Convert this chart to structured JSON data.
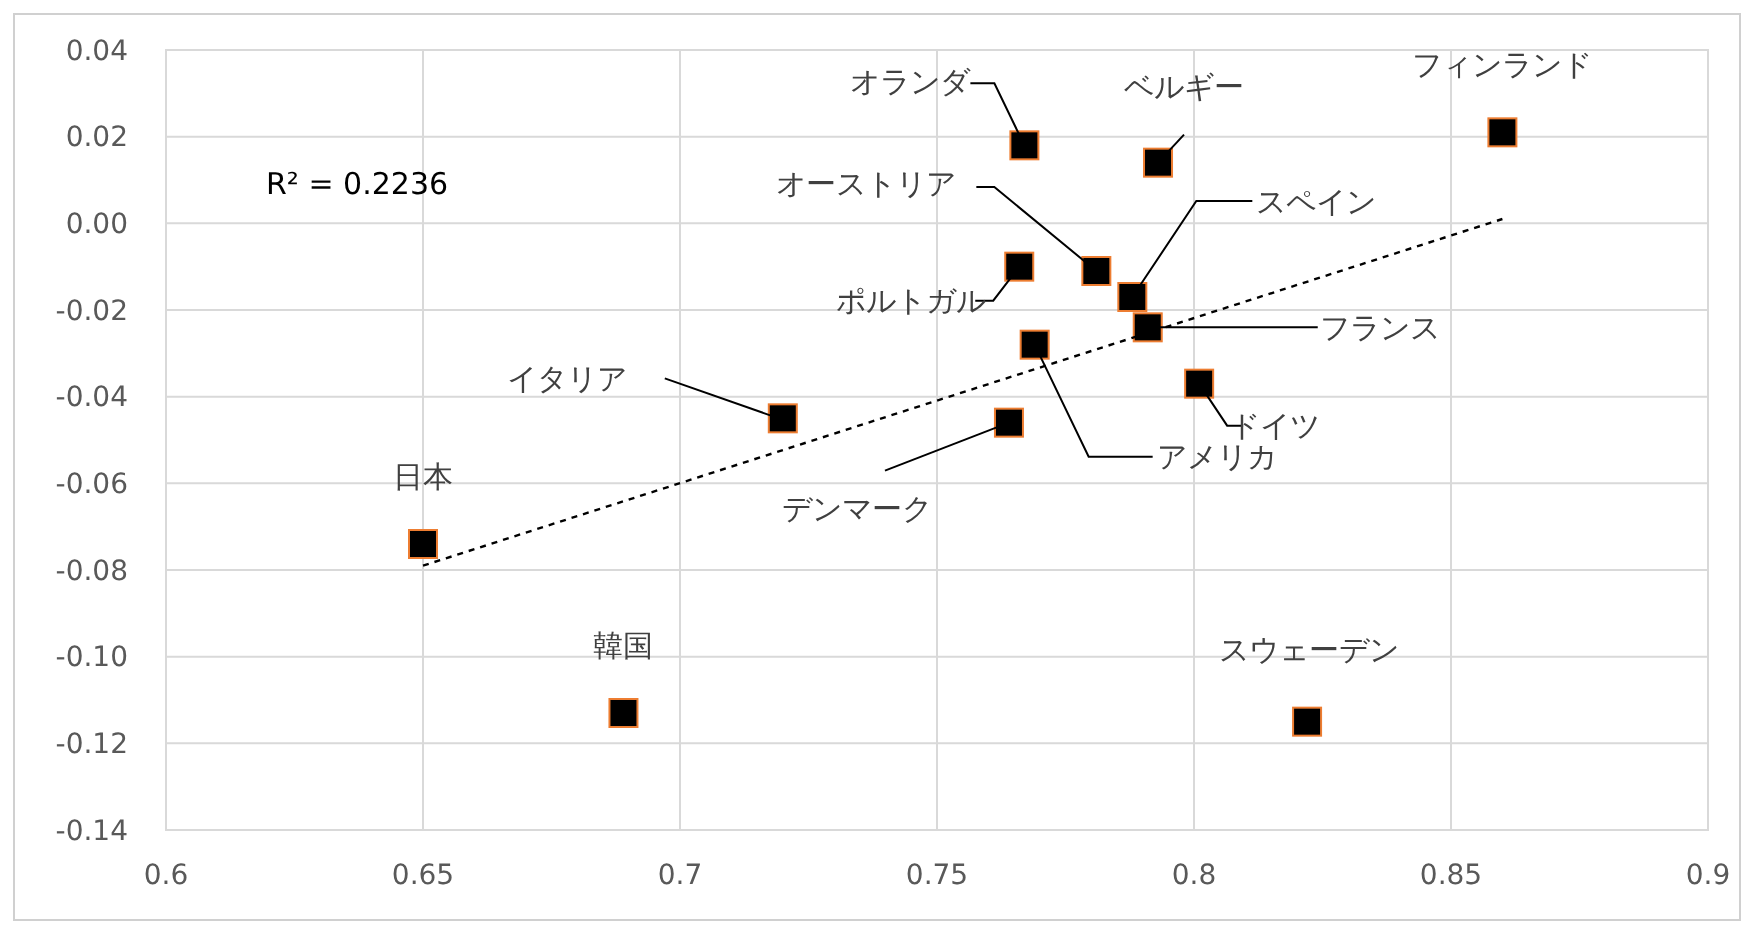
{
  "chart_data": {
    "type": "scatter",
    "grid": true,
    "xlim": [
      0.6,
      0.9
    ],
    "xticks": [
      0.6,
      0.65,
      0.7,
      0.75,
      0.8,
      0.85,
      0.9
    ],
    "ylim": [
      -0.14,
      0.04
    ],
    "yticks": [
      {
        "value": -0.14,
        "label": "-0.14"
      },
      {
        "value": -0.12,
        "label": "-0.12"
      },
      {
        "value": -0.1,
        "label": "-0.10"
      },
      {
        "value": -0.08,
        "label": "-0.08"
      },
      {
        "value": -0.06,
        "label": "-0.06"
      },
      {
        "value": -0.04,
        "label": "-0.04"
      },
      {
        "value": -0.02,
        "label": "-0.02"
      },
      {
        "value": 0,
        "label": "0.00"
      },
      {
        "value": 0.02,
        "label": "0.02"
      },
      {
        "value": 0.04,
        "label": "0.04"
      }
    ],
    "series": [
      {
        "marker": "square",
        "color": "#000000",
        "x": [
          0.65,
          0.689,
          0.72,
          0.767,
          0.793,
          0.86,
          0.781,
          0.766,
          0.788,
          0.791,
          0.769,
          0.764,
          0.801,
          0.822
        ],
        "values": [
          -0.074,
          -0.113,
          -0.045,
          0.018,
          0.014,
          0.021,
          -0.011,
          -0.01,
          -0.017,
          -0.024,
          -0.028,
          -0.046,
          -0.037,
          -0.115
        ]
      },
      {
        "type": "line",
        "marker": "none",
        "color": "#000000",
        "line_style": "dashed",
        "x": [
          0.65,
          0.86
        ],
        "values": [
          -0.079,
          0.001
        ]
      }
    ],
    "annotations": [
      "R² = 0.2236",
      {
        "text": "日本",
        "x": 0.65,
        "y": -0.074
      },
      {
        "text": "韓国",
        "x": 0.689,
        "y": -0.113
      },
      {
        "text": "イタリア",
        "x": 0.72,
        "y": -0.045
      },
      {
        "text": "オランダ",
        "x": 0.767,
        "y": 0.018
      },
      {
        "text": "ベルギー",
        "x": 0.793,
        "y": 0.014
      },
      {
        "text": "フィンランド",
        "x": 0.86,
        "y": 0.021
      },
      {
        "text": "オーストリア",
        "x": 0.781,
        "y": -0.011
      },
      {
        "text": "ポルトガル",
        "x": 0.766,
        "y": -0.01
      },
      {
        "text": "スペイン",
        "x": 0.788,
        "y": -0.017
      },
      {
        "text": "フランス",
        "x": 0.791,
        "y": -0.024
      },
      {
        "text": "アメリカ",
        "x": 0.769,
        "y": -0.028
      },
      {
        "text": "デンマーク",
        "x": 0.764,
        "y": -0.046
      },
      {
        "text": "ドイツ",
        "x": 0.801,
        "y": -0.037
      },
      {
        "text": "スウェーデン",
        "x": 0.822,
        "y": -0.115
      }
    ]
  }
}
